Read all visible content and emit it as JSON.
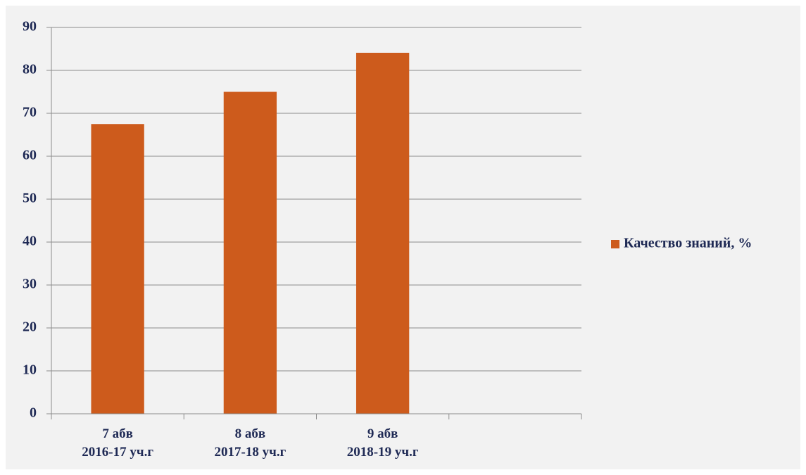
{
  "chart_data": {
    "type": "bar",
    "categories": [
      [
        "7 абв",
        "2016-17 уч.г"
      ],
      [
        "8 абв",
        "2017-18 уч.г"
      ],
      [
        "9 абв",
        "2018-19 уч.г"
      ],
      null
    ],
    "series": [
      {
        "name": "Качество знаний, %",
        "color": "#cd5b1c",
        "values": [
          67.5,
          75,
          84.1,
          null
        ]
      }
    ],
    "ylim": [
      0,
      90
    ],
    "yticks": [
      0,
      10,
      20,
      30,
      40,
      50,
      60,
      70,
      80,
      90
    ],
    "grid": true,
    "legend": "right"
  }
}
